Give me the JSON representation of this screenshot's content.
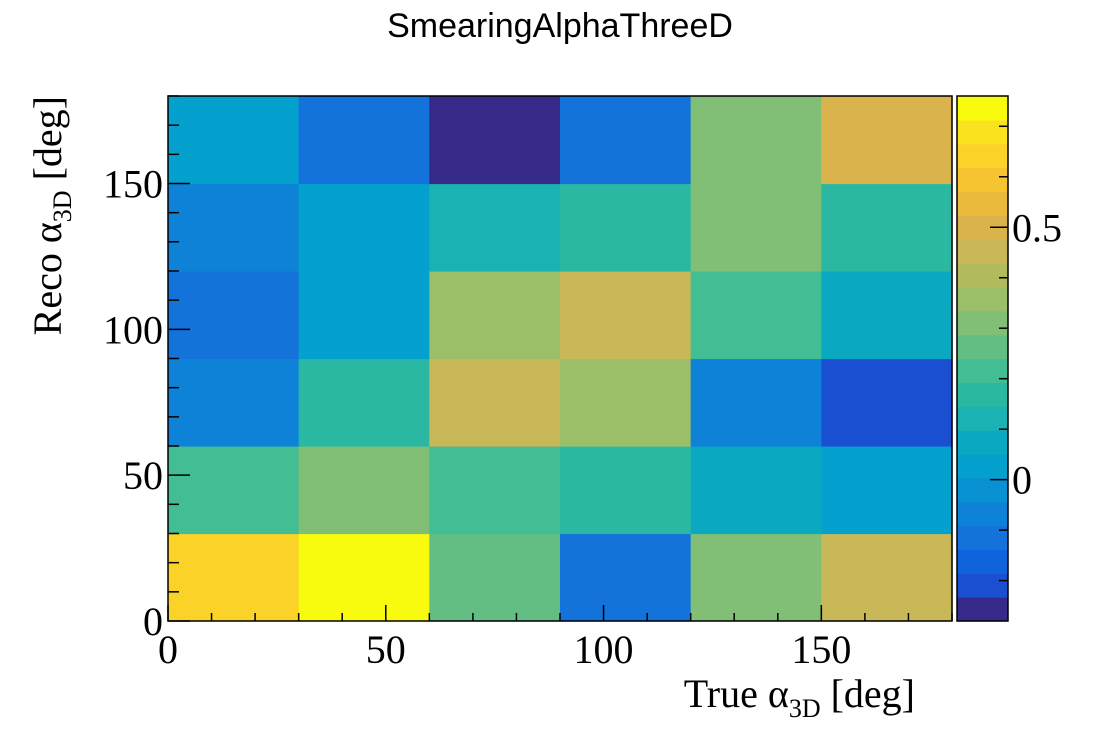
{
  "chart_data": {
    "type": "heatmap",
    "title": "SmearingAlphaThreeD",
    "xlabel": {
      "prefix": "True ",
      "symbol": "α",
      "subscript": "3D",
      "suffix": " [deg]"
    },
    "ylabel": {
      "prefix": "Reco ",
      "symbol": "α",
      "subscript": "3D",
      "suffix": " [deg]"
    },
    "xlim": [
      0,
      180
    ],
    "ylim": [
      0,
      180
    ],
    "x_edges": [
      0,
      30,
      60,
      90,
      120,
      150,
      180
    ],
    "y_edges": [
      0,
      30,
      60,
      90,
      120,
      150,
      180
    ],
    "x_ticks": [
      0,
      50,
      100,
      150
    ],
    "y_ticks": [
      0,
      50,
      100,
      150
    ],
    "x_tick_labels": [
      "0",
      "50",
      "100",
      "150"
    ],
    "y_tick_labels": [
      "0",
      "50",
      "100",
      "150"
    ],
    "z_min": -0.28,
    "z_max": 0.76,
    "z_ticks": [
      0,
      0.5
    ],
    "z_tick_labels": [
      "0",
      "0.5"
    ],
    "values": [
      [
        0.64,
        0.76,
        0.27,
        -0.1,
        0.33,
        0.43
      ],
      [
        0.2,
        0.3,
        0.23,
        0.19,
        0.06,
        0.01
      ],
      [
        -0.06,
        0.18,
        0.43,
        0.38,
        -0.07,
        -0.21
      ],
      [
        -0.1,
        0.02,
        0.34,
        0.44,
        0.22,
        0.06
      ],
      [
        -0.06,
        0.01,
        0.1,
        0.18,
        0.31,
        0.18
      ],
      [
        0.04,
        -0.12,
        -0.28,
        -0.12,
        0.33,
        0.49
      ]
    ],
    "palette": [
      "#352a87",
      "#1b4fd2",
      "#0f64dd",
      "#1373db",
      "#0d82d7",
      "#0891d3",
      "#04a0ce",
      "#0ba9c1",
      "#1ab2b3",
      "#2bb8a3",
      "#43bd93",
      "#62be83",
      "#80bf75",
      "#9bbe69",
      "#b2bc5e",
      "#c8b858",
      "#dbb34c",
      "#ecba3b",
      "#f7c431",
      "#fbd328",
      "#f9e31f",
      "#f9fb0e"
    ]
  }
}
